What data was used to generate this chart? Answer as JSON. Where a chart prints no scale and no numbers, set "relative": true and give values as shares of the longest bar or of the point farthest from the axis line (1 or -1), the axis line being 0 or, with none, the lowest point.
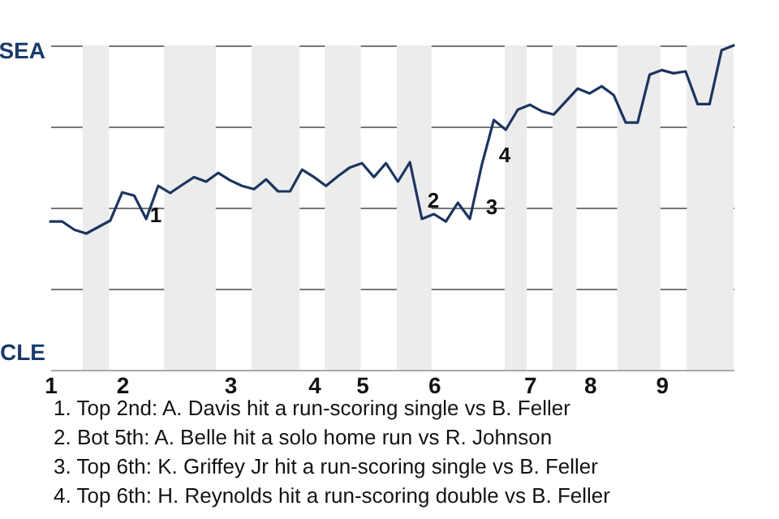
{
  "chart_data": {
    "type": "line",
    "relative": true,
    "categories": [
      "1",
      null,
      null,
      null,
      null,
      null,
      "2",
      null,
      null,
      null,
      null,
      null,
      null,
      null,
      null,
      "3",
      null,
      null,
      null,
      null,
      null,
      null,
      "4",
      null,
      null,
      null,
      "5",
      null,
      null,
      null,
      null,
      null,
      "6",
      null,
      null,
      null,
      null,
      null,
      null,
      null,
      "7",
      null,
      null,
      null,
      null,
      "8",
      null,
      null,
      null,
      null,
      null,
      "9",
      null,
      null,
      null,
      null,
      null,
      null
    ],
    "grid": "y",
    "series": [
      {
        "color": "#1c3560",
        "values": [
          0.457,
          0.457,
          0.432,
          0.42,
          0.44,
          0.46,
          0.547,
          0.537,
          0.465,
          0.567,
          0.545,
          0.57,
          0.594,
          0.58,
          0.607,
          0.584,
          0.567,
          0.557,
          0.587,
          0.55,
          0.55,
          0.617,
          0.594,
          0.567,
          0.597,
          0.624,
          0.637,
          0.594,
          0.637,
          0.58,
          0.64,
          0.465,
          0.48,
          0.457,
          0.515,
          0.465,
          0.632,
          0.77,
          0.74,
          0.802,
          0.817,
          0.797,
          0.787,
          0.827,
          0.867,
          0.852,
          0.874,
          0.847,
          0.762,
          0.762,
          0.91,
          0.924,
          0.914,
          0.92,
          0.819,
          0.819,
          0.985,
          1
        ]
      }
    ],
    "annotations": [
      "SEA",
      "CLE",
      "1",
      "2",
      "3",
      "4",
      "1. Top 2nd: A. Davis hit a run-scoring single vs B. Feller",
      "2. Bot 5th: A. Belle hit a solo home run vs R. Johnson",
      "3. Top 6th: K. Griffey Jr hit a run-scoring single vs B. Feller",
      "4. Top 6th: H. Reynolds hit a run-scoring double vs B. Feller"
    ]
  }
}
